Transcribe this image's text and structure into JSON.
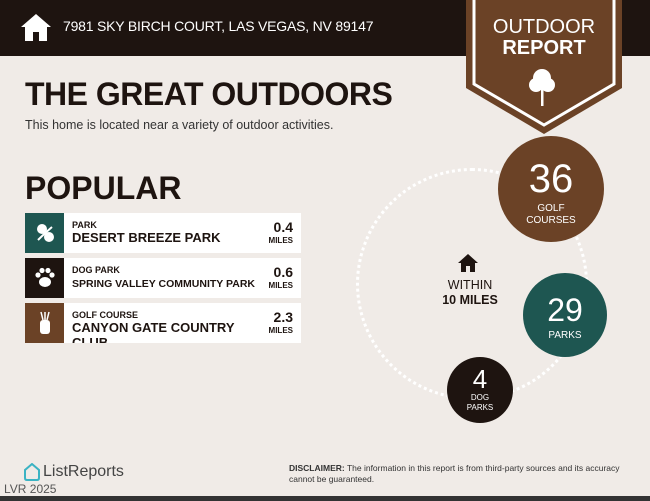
{
  "header": {
    "address": "7981 SKY BIRCH COURT, LAS VEGAS, NV 89147",
    "badge_line1": "OUTDOOR",
    "badge_line2": "REPORT"
  },
  "main": {
    "title": "THE GREAT OUTDOORS",
    "subtitle": "This home is located near a variety of outdoor activities.",
    "popular_heading": "POPULAR"
  },
  "popular": [
    {
      "category": "PARK",
      "name": "DESERT BREEZE PARK",
      "distance": "0.4",
      "unit": "MILES",
      "icon": "tree-icon",
      "color": "#1e5651"
    },
    {
      "category": "DOG PARK",
      "name": "SPRING VALLEY COMMUNITY PARK",
      "distance": "0.6",
      "unit": "MILES",
      "icon": "paw-icon",
      "color": "#1e1410"
    },
    {
      "category": "GOLF COURSE",
      "name": "CANYON GATE COUNTRY CLUB",
      "distance": "2.3",
      "unit": "MILES",
      "icon": "golf-bag-icon",
      "color": "#6b4226"
    }
  ],
  "summary": {
    "within_line1": "WITHIN",
    "within_line2": "10 MILES",
    "golf": {
      "count": "36",
      "label1": "GOLF",
      "label2": "COURSES",
      "color": "#6b4226"
    },
    "parks": {
      "count": "29",
      "label": "PARKS",
      "color": "#1e5651"
    },
    "dog": {
      "count": "4",
      "label1": "DOG",
      "label2": "PARKS",
      "color": "#1e1410"
    }
  },
  "footer": {
    "logo": "ListReports",
    "watermark": "LVR 2025",
    "disclaimer_label": "DISCLAIMER:",
    "disclaimer_text": " The information in this report is from third-party sources and its accuracy cannot be guaranteed."
  }
}
